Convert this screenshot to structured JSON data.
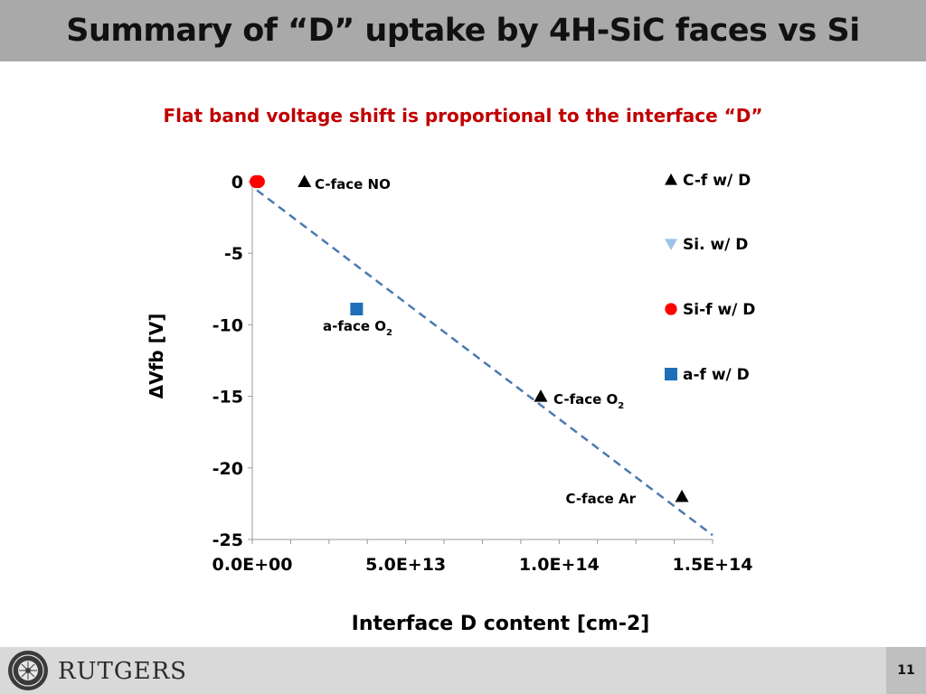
{
  "slide": {
    "title": "Summary of “D” uptake by 4H-SiC faces vs Si",
    "subtitle": "Flat band voltage shift is proportional to the interface “D”",
    "page_number": "11"
  },
  "footer": {
    "logo_text": "RUTGERS",
    "seal_icon": "rutgers-seal-icon"
  },
  "colors": {
    "title_bar": "#a9a9a9",
    "subtitle": "#c00000",
    "trend_line": "#4a7ab0",
    "c_face": "#000000",
    "si_ref": "#9dc3e6",
    "si_face": "#ff0000",
    "a_face": "#1f6fb8"
  },
  "chart_data": {
    "type": "scatter",
    "xlabel": "Interface D content [cm-2]",
    "ylabel": "ΔVfb [V]",
    "xlim": [
      0,
      150000000000000.0
    ],
    "ylim": [
      -25,
      0
    ],
    "x_ticks": [
      {
        "value": 0,
        "label": "0.0E+00"
      },
      {
        "value": 50000000000000.0,
        "label": "5.0E+13"
      },
      {
        "value": 100000000000000.0,
        "label": "1.0E+14"
      },
      {
        "value": 150000000000000.0,
        "label": "1.5E+14"
      }
    ],
    "y_ticks": [
      {
        "value": 0,
        "label": "0"
      },
      {
        "value": -5,
        "label": "-5"
      },
      {
        "value": -10,
        "label": "-10"
      },
      {
        "value": -15,
        "label": "-15"
      },
      {
        "value": -20,
        "label": "-20"
      },
      {
        "value": -25,
        "label": "-25"
      }
    ],
    "legend_position": "right",
    "series": [
      {
        "name": "C-f w/ D",
        "marker": "triangle",
        "color": "#000000",
        "points": [
          {
            "x": 17000000000000.0,
            "y": 0
          },
          {
            "x": 94000000000000.0,
            "y": -15
          },
          {
            "x": 140000000000000.0,
            "y": -22
          }
        ]
      },
      {
        "name": "Si. w/ D",
        "marker": "triangle-down",
        "color": "#9dc3e6",
        "points": []
      },
      {
        "name": "Si-f w/ D",
        "marker": "circle",
        "color": "#ff0000",
        "points": [
          {
            "x": 1200000000000.0,
            "y": 0
          },
          {
            "x": 2000000000000.0,
            "y": 0
          }
        ]
      },
      {
        "name": "a-f w/ D",
        "marker": "square",
        "color": "#1f6fb8",
        "points": [
          {
            "x": 34000000000000.0,
            "y": -8.9
          }
        ]
      }
    ],
    "annotations": [
      {
        "text": "C-face NO",
        "sub": ""
      },
      {
        "text": "a-face O",
        "sub": "2"
      },
      {
        "text": "C-face O",
        "sub": "2"
      },
      {
        "text": "C-face Ar",
        "sub": ""
      }
    ],
    "trend_line": {
      "x": [
        1500000000000.0,
        150000000000000.0
      ],
      "y": [
        -0.6,
        -24.7
      ],
      "style": "dashed"
    }
  }
}
